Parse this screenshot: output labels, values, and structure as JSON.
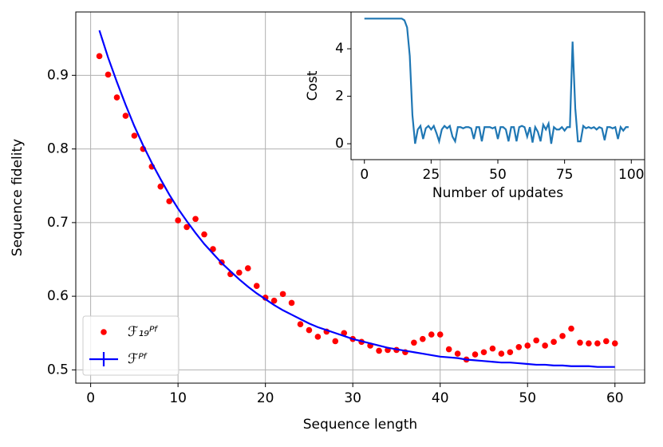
{
  "chart_data": [
    {
      "type": "scatter",
      "x_label": "Sequence length",
      "y_label": "Sequence fidelity",
      "x": [
        1,
        2,
        3,
        4,
        5,
        6,
        7,
        8,
        9,
        10,
        11,
        12,
        13,
        14,
        15,
        16,
        17,
        18,
        19,
        20,
        21,
        22,
        23,
        24,
        25,
        26,
        27,
        28,
        29,
        30,
        31,
        32,
        33,
        34,
        35,
        36,
        37,
        38,
        39,
        40,
        41,
        42,
        43,
        44,
        45,
        46,
        47,
        48,
        49,
        50,
        51,
        52,
        53,
        54,
        55,
        56,
        57,
        58,
        59,
        60
      ],
      "series": [
        {
          "name": "ℱ₁₉ᴾᶠ",
          "type": "scatter",
          "color": "#ff0000",
          "values": [
            0.926,
            0.901,
            0.87,
            0.845,
            0.818,
            0.8,
            0.776,
            0.749,
            0.729,
            0.703,
            0.694,
            0.705,
            0.684,
            0.664,
            0.646,
            0.63,
            0.632,
            0.638,
            0.614,
            0.598,
            0.594,
            0.603,
            0.591,
            0.562,
            0.554,
            0.545,
            0.552,
            0.539,
            0.55,
            0.542,
            0.538,
            0.533,
            0.526,
            0.527,
            0.527,
            0.524,
            0.537,
            0.542,
            0.548,
            0.548,
            0.528,
            0.522,
            0.514,
            0.521,
            0.524,
            0.529,
            0.522,
            0.524,
            0.531,
            0.533,
            0.54,
            0.533,
            0.538,
            0.546,
            0.556,
            0.537,
            0.536,
            0.536,
            0.539,
            0.536
          ]
        },
        {
          "name": "ℱᴾᶠ",
          "type": "line",
          "color": "#0000ff",
          "values": [
            0.961,
            0.924,
            0.891,
            0.86,
            0.831,
            0.805,
            0.781,
            0.759,
            0.738,
            0.719,
            0.702,
            0.686,
            0.671,
            0.658,
            0.645,
            0.634,
            0.623,
            0.613,
            0.604,
            0.596,
            0.588,
            0.581,
            0.575,
            0.569,
            0.563,
            0.558,
            0.554,
            0.55,
            0.546,
            0.542,
            0.539,
            0.536,
            0.533,
            0.53,
            0.528,
            0.526,
            0.524,
            0.522,
            0.52,
            0.518,
            0.517,
            0.516,
            0.514,
            0.513,
            0.512,
            0.511,
            0.51,
            0.51,
            0.509,
            0.508,
            0.507,
            0.507,
            0.506,
            0.506,
            0.505,
            0.505,
            0.505,
            0.504,
            0.504,
            0.504
          ]
        }
      ],
      "xlim": [
        -1.7,
        63.4
      ],
      "xticks": [
        0,
        10,
        20,
        30,
        40,
        50,
        60
      ],
      "ylim": [
        0.482,
        0.986
      ],
      "yticks": [
        0.5,
        0.6,
        0.7,
        0.8,
        0.9
      ],
      "grid": true,
      "legend": "lower left"
    },
    {
      "type": "line",
      "x_label": "Number of updates",
      "y_label": "Cost",
      "x": [
        0,
        1,
        2,
        3,
        4,
        5,
        6,
        7,
        8,
        9,
        10,
        11,
        12,
        13,
        14,
        15,
        16,
        17,
        18,
        19,
        20,
        21,
        22,
        23,
        24,
        25,
        26,
        27,
        28,
        29,
        30,
        31,
        32,
        33,
        34,
        35,
        36,
        37,
        38,
        39,
        40,
        41,
        42,
        43,
        44,
        45,
        46,
        47,
        48,
        49,
        50,
        51,
        52,
        53,
        54,
        55,
        56,
        57,
        58,
        59,
        60,
        61,
        62,
        63,
        64,
        65,
        66,
        67,
        68,
        69,
        70,
        71,
        72,
        73,
        74,
        75,
        76,
        77,
        78,
        79,
        80,
        81,
        82,
        83,
        84,
        85,
        86,
        87,
        88,
        89,
        90,
        91,
        92,
        93,
        94,
        95,
        96,
        97,
        98,
        99
      ],
      "values": [
        5.27,
        5.27,
        5.27,
        5.27,
        5.27,
        5.27,
        5.27,
        5.27,
        5.27,
        5.27,
        5.27,
        5.27,
        5.27,
        5.27,
        5.27,
        5.2,
        4.9,
        3.7,
        1.2,
        0.0,
        0.6,
        0.75,
        0.2,
        0.65,
        0.75,
        0.6,
        0.75,
        0.45,
        0.1,
        0.6,
        0.75,
        0.65,
        0.75,
        0.3,
        0.1,
        0.7,
        0.7,
        0.65,
        0.7,
        0.7,
        0.65,
        0.2,
        0.7,
        0.7,
        0.1,
        0.7,
        0.7,
        0.7,
        0.65,
        0.7,
        0.2,
        0.7,
        0.7,
        0.6,
        0.1,
        0.7,
        0.7,
        0.1,
        0.7,
        0.75,
        0.7,
        0.3,
        0.7,
        0.05,
        0.7,
        0.5,
        0.1,
        0.8,
        0.6,
        0.85,
        0.0,
        0.7,
        0.6,
        0.6,
        0.7,
        0.55,
        0.7,
        0.7,
        4.3,
        1.5,
        0.1,
        0.1,
        0.75,
        0.65,
        0.7,
        0.65,
        0.7,
        0.6,
        0.7,
        0.65,
        0.15,
        0.7,
        0.7,
        0.65,
        0.7,
        0.2,
        0.7,
        0.55,
        0.7,
        0.7
      ],
      "color": "#1f77b4",
      "xlim": [
        -5,
        105
      ],
      "xticks": [
        0,
        25,
        50,
        75,
        100
      ],
      "ylim": [
        -0.67,
        5.55
      ],
      "yticks": [
        0,
        2,
        4
      ],
      "grid": false
    }
  ]
}
